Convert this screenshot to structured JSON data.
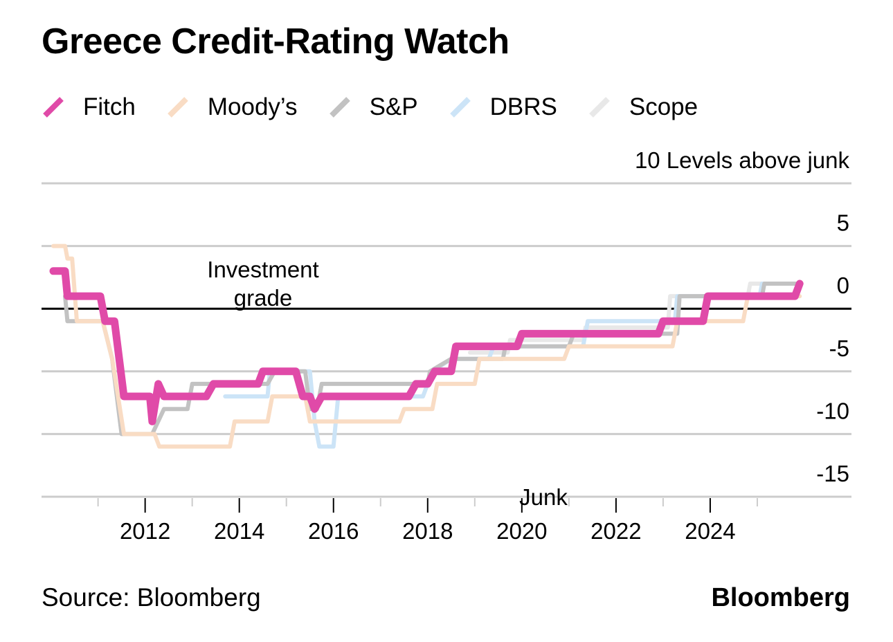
{
  "chart_data": {
    "type": "line",
    "title": "Greece Credit-Rating Watch",
    "ylabel": "Levels above junk",
    "y_unit_label": "10 Levels above junk",
    "ylim": [
      -15,
      10
    ],
    "xlim": [
      2009.8,
      2027
    ],
    "y_ticks": [
      {
        "value": 10,
        "label": "10 Levels above junk"
      },
      {
        "value": 5,
        "label": "5"
      },
      {
        "value": 0,
        "label": "0"
      },
      {
        "value": -5,
        "label": "-5"
      },
      {
        "value": -10,
        "label": "-10"
      },
      {
        "value": -15,
        "label": "-15"
      }
    ],
    "x_ticks": [
      {
        "value": 2012,
        "label": "2012"
      },
      {
        "value": 2014,
        "label": "2014"
      },
      {
        "value": 2016,
        "label": "2016"
      },
      {
        "value": 2018,
        "label": "2018"
      },
      {
        "value": 2020,
        "label": "2020"
      },
      {
        "value": 2022,
        "label": "2022"
      },
      {
        "value": 2024,
        "label": "2024"
      }
    ],
    "x_minor_ticks": [
      2011,
      2013,
      2015,
      2017,
      2019,
      2021,
      2023,
      2025
    ],
    "grid": true,
    "legend_position": "top-left",
    "annotations": [
      {
        "text": "Investment grade",
        "x": 2012.5,
        "y": 0,
        "position": "above"
      },
      {
        "text": "Junk",
        "x": 2020,
        "y": -15,
        "position": "below"
      }
    ],
    "series": [
      {
        "name": "Scope",
        "color": "#e8e8e8",
        "points": [
          [
            2018.9,
            -3.5
          ],
          [
            2019.7,
            -3.5
          ],
          [
            2019.75,
            -2.5
          ],
          [
            2021.3,
            -2.5
          ],
          [
            2021.35,
            -1.5
          ],
          [
            2023.1,
            -1.5
          ],
          [
            2023.15,
            1
          ],
          [
            2024.8,
            1
          ],
          [
            2024.85,
            2
          ],
          [
            2025.9,
            2
          ]
        ]
      },
      {
        "name": "DBRS",
        "color": "#cce4f7",
        "points": [
          [
            2013.7,
            -7
          ],
          [
            2014.6,
            -7
          ],
          [
            2014.65,
            -5
          ],
          [
            2015.5,
            -5
          ],
          [
            2015.6,
            -9
          ],
          [
            2015.7,
            -11
          ],
          [
            2016.0,
            -11
          ],
          [
            2016.1,
            -7
          ],
          [
            2017.9,
            -7
          ],
          [
            2018.0,
            -6
          ],
          [
            2018.1,
            -5
          ],
          [
            2018.5,
            -4
          ],
          [
            2019.3,
            -4
          ],
          [
            2019.4,
            -3
          ],
          [
            2021.3,
            -3
          ],
          [
            2021.4,
            -1
          ],
          [
            2023.25,
            -1
          ],
          [
            2023.3,
            1
          ],
          [
            2025.05,
            1
          ],
          [
            2025.1,
            2
          ],
          [
            2025.9,
            2
          ]
        ]
      },
      {
        "name": "S&P",
        "color": "#c2c2c2",
        "points": [
          [
            2010.3,
            1
          ],
          [
            2010.35,
            -1
          ],
          [
            2011.1,
            -1
          ],
          [
            2011.3,
            -4
          ],
          [
            2011.5,
            -10
          ],
          [
            2012.15,
            -10
          ],
          [
            2012.4,
            -8
          ],
          [
            2012.9,
            -8
          ],
          [
            2013.0,
            -6
          ],
          [
            2014.6,
            -6
          ],
          [
            2014.75,
            -5
          ],
          [
            2015.4,
            -5
          ],
          [
            2015.5,
            -8
          ],
          [
            2015.65,
            -8
          ],
          [
            2015.75,
            -6
          ],
          [
            2018.0,
            -6
          ],
          [
            2018.05,
            -5
          ],
          [
            2018.5,
            -4
          ],
          [
            2019.6,
            -4
          ],
          [
            2019.65,
            -3
          ],
          [
            2021.0,
            -3
          ],
          [
            2021.1,
            -2
          ],
          [
            2023.3,
            -2
          ],
          [
            2023.35,
            1
          ],
          [
            2025.1,
            1
          ],
          [
            2025.15,
            2
          ],
          [
            2025.9,
            2
          ]
        ]
      },
      {
        "name": "Moody's",
        "color": "#f9dcc4",
        "points": [
          [
            2010.05,
            5
          ],
          [
            2010.3,
            5
          ],
          [
            2010.35,
            4
          ],
          [
            2010.45,
            4
          ],
          [
            2010.55,
            -1
          ],
          [
            2011.1,
            -1
          ],
          [
            2011.3,
            -4
          ],
          [
            2011.55,
            -10
          ],
          [
            2012.2,
            -10
          ],
          [
            2012.3,
            -11
          ],
          [
            2013.8,
            -11
          ],
          [
            2013.9,
            -9
          ],
          [
            2014.6,
            -9
          ],
          [
            2014.7,
            -7
          ],
          [
            2015.4,
            -7
          ],
          [
            2015.5,
            -9
          ],
          [
            2017.4,
            -9
          ],
          [
            2017.5,
            -8
          ],
          [
            2018.1,
            -8
          ],
          [
            2018.2,
            -6
          ],
          [
            2019.0,
            -6
          ],
          [
            2019.1,
            -4
          ],
          [
            2020.9,
            -4
          ],
          [
            2021.0,
            -3
          ],
          [
            2023.2,
            -3
          ],
          [
            2023.3,
            -1
          ],
          [
            2024.7,
            -1
          ],
          [
            2024.8,
            1
          ],
          [
            2025.9,
            1
          ]
        ]
      },
      {
        "name": "Fitch",
        "color": "#e04aa8",
        "points": [
          [
            2010.05,
            3
          ],
          [
            2010.3,
            3
          ],
          [
            2010.35,
            1
          ],
          [
            2011.05,
            1
          ],
          [
            2011.15,
            -1
          ],
          [
            2011.35,
            -1
          ],
          [
            2011.45,
            -4
          ],
          [
            2011.55,
            -7
          ],
          [
            2012.1,
            -7
          ],
          [
            2012.15,
            -9
          ],
          [
            2012.28,
            -6
          ],
          [
            2012.4,
            -7
          ],
          [
            2013.3,
            -7
          ],
          [
            2013.45,
            -6
          ],
          [
            2014.4,
            -6
          ],
          [
            2014.5,
            -5
          ],
          [
            2015.2,
            -5
          ],
          [
            2015.35,
            -7
          ],
          [
            2015.5,
            -7
          ],
          [
            2015.6,
            -8
          ],
          [
            2015.75,
            -7
          ],
          [
            2017.6,
            -7
          ],
          [
            2017.75,
            -6
          ],
          [
            2018.0,
            -6
          ],
          [
            2018.15,
            -5
          ],
          [
            2018.5,
            -5
          ],
          [
            2018.6,
            -3
          ],
          [
            2019.9,
            -3
          ],
          [
            2020.0,
            -2
          ],
          [
            2022.9,
            -2
          ],
          [
            2023.0,
            -1
          ],
          [
            2023.85,
            -1
          ],
          [
            2023.95,
            1
          ],
          [
            2025.8,
            1
          ],
          [
            2025.9,
            2
          ]
        ]
      }
    ]
  },
  "header": {
    "title": "Greece Credit-Rating Watch"
  },
  "legend": [
    {
      "name": "Fitch",
      "color": "#e04aa8"
    },
    {
      "name": "Moody’s",
      "color": "#f9dcc4"
    },
    {
      "name": "S&P",
      "color": "#c2c2c2"
    },
    {
      "name": "DBRS",
      "color": "#cce4f7"
    },
    {
      "name": "Scope",
      "color": "#e8e8e8"
    }
  ],
  "footer": {
    "source": "Source: Bloomberg",
    "brand": "Bloomberg"
  }
}
